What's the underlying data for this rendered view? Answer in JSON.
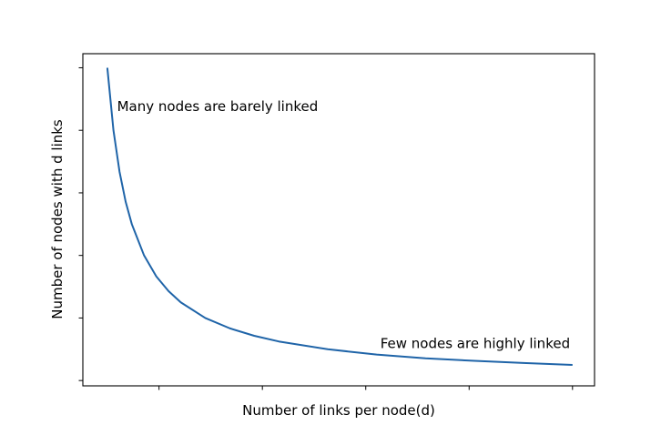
{
  "chart_data": {
    "type": "line",
    "title": "",
    "xlabel": "Number of links per node(d)",
    "ylabel": "Number of nodes with d links",
    "x_tick_labels": false,
    "y_tick_labels": false,
    "x_tick_count": 5,
    "y_tick_count": 6,
    "grid": false,
    "legend": "none",
    "series": [
      {
        "color": "#1f64a8",
        "shape": "power-law decay",
        "x": [
          1,
          1.25,
          1.5,
          1.75,
          2,
          2.5,
          3,
          3.5,
          4,
          5,
          6,
          7,
          8,
          10,
          12,
          14,
          16,
          18,
          20
        ],
        "y": [
          100,
          80,
          66.7,
          57.1,
          50,
          40,
          33.3,
          28.6,
          25,
          20,
          16.7,
          14.3,
          12.5,
          10,
          8.3,
          7.1,
          6.3,
          5.6,
          5
        ]
      }
    ],
    "xlim": [
      0,
      20.9
    ],
    "ylim": [
      -1.7,
      104.5
    ],
    "annotations": [
      {
        "text": "Many nodes are barely linked",
        "x": 1.4,
        "y": 86.2,
        "anchor": "start"
      },
      {
        "text": "Few nodes are highly linked",
        "x": 19.9,
        "y": 10.4,
        "anchor": "end"
      }
    ]
  }
}
